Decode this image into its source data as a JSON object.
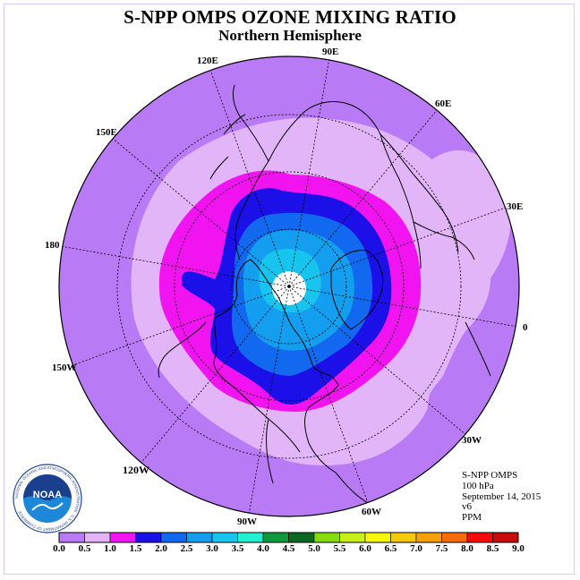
{
  "title": "S-NPP OMPS OZONE MIXING RATIO",
  "subtitle": "Northern Hemisphere",
  "longitude_labels": [
    "90E",
    "60E",
    "30E",
    "0",
    "30W",
    "60W",
    "90W",
    "120W",
    "150W",
    "180",
    "150E",
    "120E"
  ],
  "info": {
    "instrument": "S-NPP OMPS",
    "level": "100 hPa",
    "date": "September 14, 2015",
    "version": "v6",
    "units": "PPM"
  },
  "colorbar": {
    "ticks": [
      "0.0",
      "0.5",
      "1.0",
      "1.5",
      "2.0",
      "2.5",
      "3.0",
      "3.5",
      "4.0",
      "4.5",
      "5.0",
      "5.5",
      "6.0",
      "6.5",
      "7.0",
      "7.5",
      "8.0",
      "8.5",
      "9.0"
    ],
    "colors": [
      "#b97af5",
      "#e2b5f8",
      "#f214f0",
      "#1c10e8",
      "#1268ee",
      "#139ef0",
      "#17c4ee",
      "#23f0d2",
      "#0d9a3a",
      "#0a6a24",
      "#86dc0a",
      "#c8f018",
      "#f8f80a",
      "#f8c80a",
      "#f8a00a",
      "#f86a0a",
      "#f80a0a",
      "#c80a0a",
      "#8a5a3a"
    ]
  },
  "noaa_logo": {
    "text": "NOAA",
    "ring_text": "NATIONAL OCEANIC AND ATMOSPHERIC ADMINISTRATION · U.S. DEPARTMENT OF COMMERCE"
  }
}
